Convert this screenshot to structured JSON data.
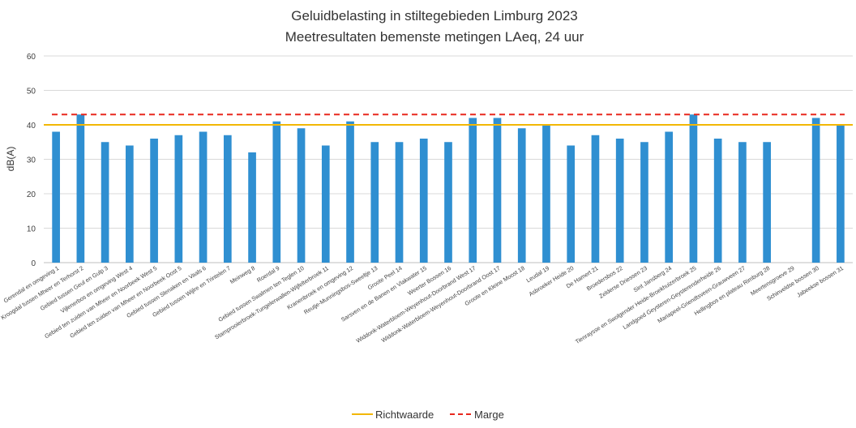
{
  "chart_data": {
    "type": "bar",
    "title": "Geluidbelasting in stiltegebieden Limburg 2023",
    "subtitle": "Meetresultaten bemenste metingen LAeq, 24 uur",
    "xlabel": "",
    "ylabel": "dB(A)",
    "ylim": [
      0,
      60
    ],
    "yticks": [
      0,
      10,
      20,
      30,
      40,
      50,
      60
    ],
    "grid": true,
    "legend_position": "bottom",
    "colors": {
      "bar": "#2F8FD1",
      "richtwaarde": "#F2B705",
      "marge": "#E8281E"
    },
    "categories": [
      "Gerendal en omgeving 1",
      "Kroogdal tussen Mheer en Terhorst 2",
      "Gebied tussen Geul en Gulp 3",
      "Vijlenerbos en omgeving West 4",
      "Gebied ten zuiden van Mheer en Noorbeek West 5",
      "Gebied ten zuiden van Mheer en Noorbeek Oost 5",
      "Gebied tussen Slenaken en Vaals 6",
      "Gebied tussen Wijlre en Trintelen 7",
      "Meinweg 8",
      "Roerdal 9",
      "Gebied tussen Swalmen ten Teglen 10",
      "Stamprooierbroek-Tungelerwallen-Wijfelterbroek 11",
      "Kranenbroek en omgeving 12",
      "Reutje-Munningsbos-Sweeltje 13",
      "Groote Peel 14",
      "Sarsven en de Banen en Vlakwater 15",
      "Weerter Bossen 16",
      "Widdonk-Waterbloem-Weyenhout-Doorbrand West 17",
      "Widdonk-Waterbloem-Weyenhout-Doorbrand Oost 17",
      "Groote en Kleine Moost 18",
      "Leudal 19",
      "Asbroeker Heide 20",
      "De Hamert 21",
      "Broedersbos 22",
      "Zelderse Driessen 23",
      "Sint Jansberg 24",
      "Tienraysse en Swolgender Heide-Broekhuizerbroek 25",
      "Landgoed Geysteren-Geysterenderheide 26",
      "Mariapeel-Griendtsveen-Grauwveen 27",
      "Hellingbos en plateau Rimburg 28",
      "Meertensgroeve 29",
      "Schinveldse bossen 30",
      "Jabeekse bossen 31"
    ],
    "series": [
      {
        "type": "bar",
        "values": [
          38,
          43,
          35,
          34,
          36,
          37,
          38,
          37,
          32,
          41,
          39,
          34,
          41,
          35,
          35,
          36,
          35,
          42,
          42,
          39,
          40,
          34,
          37,
          36,
          35,
          38,
          43,
          36,
          35,
          35,
          null,
          42,
          40
        ]
      },
      {
        "name": "Richtwaarde",
        "type": "line",
        "value": 40
      },
      {
        "name": "Marge",
        "type": "dashed-line",
        "value": 43
      }
    ]
  }
}
